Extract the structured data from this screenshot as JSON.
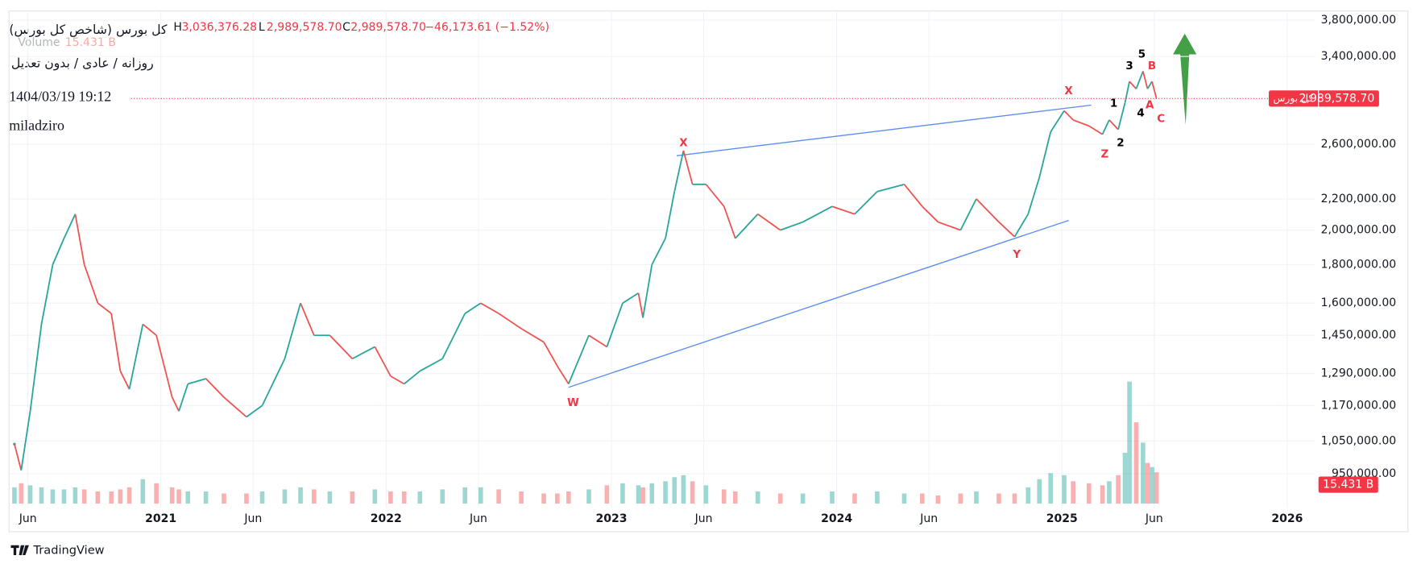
{
  "chart_data": {
    "type": "line",
    "header": {
      "title": "کل بورس (شاخص کل بورس)",
      "ohlc": [
        {
          "label": "H",
          "value": {
            "value": 3036376.28,
            "label": "3,036,376.28"
          }
        },
        {
          "label": "L",
          "value": {
            "value": 2989578.7,
            "label": "2,989,578.70"
          }
        },
        {
          "label": "C",
          "value": {
            "value": 2989578.7,
            "label": "2,989,578.70"
          }
        }
      ],
      "change_label": "−46,173.61 (−1.52%)",
      "volume_title": "Volume",
      "settings": "روزانه / عادی / بدون تعدیل",
      "timestamp": "1404/03/19 19:12",
      "author": "miladziro",
      "brand": "TradingView"
    },
    "price_label": {
      "name": "کل بورس",
      "value": {
        "value": 2989578.7,
        "label": "2,989,578.70"
      }
    },
    "volume_label": "15.431 B",
    "log_scale": true,
    "up_color": "#26a69a",
    "down_color": "#ef5350",
    "x": [
      2020.35,
      2020.38,
      2020.42,
      2020.47,
      2020.52,
      2020.57,
      2020.62,
      2020.66,
      2020.72,
      2020.78,
      2020.82,
      2020.86,
      2020.92,
      2020.98,
      2021.05,
      2021.08,
      2021.12,
      2021.2,
      2021.28,
      2021.38,
      2021.45,
      2021.55,
      2021.62,
      2021.68,
      2021.75,
      2021.85,
      2021.95,
      2022.02,
      2022.08,
      2022.15,
      2022.25,
      2022.35,
      2022.42,
      2022.5,
      2022.6,
      2022.7,
      2022.76,
      2022.81,
      2022.9,
      2022.98,
      2023.05,
      2023.12,
      2023.14,
      2023.18,
      2023.24,
      2023.28,
      2023.32,
      2023.36,
      2023.42,
      2023.5,
      2023.55,
      2023.65,
      2023.75,
      2023.85,
      2023.98,
      2024.08,
      2024.18,
      2024.3,
      2024.38,
      2024.45,
      2024.55,
      2024.62,
      2024.72,
      2024.79,
      2024.85,
      2024.9,
      2024.95,
      2025.01,
      2025.05,
      2025.12,
      2025.18,
      2025.21,
      2025.25,
      2025.28,
      2025.3,
      2025.33,
      2025.36,
      2025.38,
      2025.4,
      2025.42
    ],
    "values": [
      1040000,
      960000,
      1150000,
      1500000,
      1800000,
      1950000,
      2100000,
      1800000,
      1600000,
      1550000,
      1300000,
      1230000,
      1500000,
      1450000,
      1200000,
      1150000,
      1250000,
      1270000,
      1200000,
      1130000,
      1170000,
      1350000,
      1600000,
      1450000,
      1450000,
      1350000,
      1400000,
      1280000,
      1250000,
      1300000,
      1350000,
      1550000,
      1600000,
      1550000,
      1480000,
      1420000,
      1320000,
      1250000,
      1450000,
      1400000,
      1600000,
      1650000,
      1530000,
      1800000,
      1950000,
      2250000,
      2550000,
      2300000,
      2300000,
      2150000,
      1950000,
      2100000,
      2000000,
      2050000,
      2150000,
      2100000,
      2250000,
      2300000,
      2150000,
      2050000,
      2000000,
      2200000,
      2050000,
      1960000,
      2100000,
      2350000,
      2700000,
      2880000,
      2800000,
      2750000,
      2680000,
      2800000,
      2720000,
      2950000,
      3150000,
      3080000,
      3250000,
      3080000,
      3150000,
      2989578.7
    ],
    "volume": [
      8,
      10,
      9,
      8,
      7,
      7,
      8,
      7,
      6,
      6,
      7,
      8,
      12,
      10,
      8,
      7,
      6,
      6,
      5,
      5,
      6,
      7,
      8,
      7,
      6,
      6,
      7,
      6,
      6,
      6,
      7,
      8,
      8,
      7,
      6,
      5,
      5,
      6,
      7,
      9,
      10,
      9,
      8,
      10,
      11,
      13,
      14,
      11,
      9,
      7,
      6,
      6,
      5,
      5,
      6,
      5,
      6,
      5,
      5,
      4,
      5,
      6,
      5,
      5,
      8,
      12,
      15,
      14,
      11,
      10,
      9,
      11,
      14,
      25,
      60,
      40,
      30,
      20,
      18,
      15.431
    ],
    "xlim": [
      2020.326,
      2026.123
    ],
    "xticks": [
      {
        "value": 2020.41,
        "label": "Jun"
      },
      2021,
      {
        "value": 2021.41,
        "label": "Jun"
      },
      2022,
      {
        "value": 2022.41,
        "label": "Jun"
      },
      2023,
      {
        "value": 2023.41,
        "label": "Jun"
      },
      2024,
      {
        "value": 2024.41,
        "label": "Jun"
      },
      2025,
      {
        "value": 2025.41,
        "label": "Jun"
      },
      2026
    ],
    "ylim": [
      867000,
      3906000
    ],
    "yticks": [
      {
        "value": 950000,
        "label": "950,000.00"
      },
      {
        "value": 1050000,
        "label": "1,050,000.00"
      },
      {
        "value": 1170000,
        "label": "1,170,000.00"
      },
      {
        "value": 1290000,
        "label": "1,290,000.00"
      },
      {
        "value": 1450000,
        "label": "1,450,000.00"
      },
      {
        "value": 1600000,
        "label": "1,600,000.00"
      },
      {
        "value": 1800000,
        "label": "1,800,000.00"
      },
      {
        "value": 2000000,
        "label": "2,000,000.00"
      },
      {
        "value": 2200000,
        "label": "2,200,000.00"
      },
      {
        "value": 2600000,
        "label": "2,600,000.00"
      },
      {
        "value": 3400000,
        "label": "3,400,000.00"
      },
      {
        "value": 3800000,
        "label": "3,800,000.00"
      }
    ],
    "grid": true,
    "trendlines": [
      {
        "x": [
          2023.29,
          2025.13
        ],
        "y": [
          2510000,
          2930000
        ],
        "color": "#5b8def"
      },
      {
        "x": [
          2022.81,
          2025.03
        ],
        "y": [
          1237000,
          2060000
        ],
        "color": "#5b8def"
      }
    ],
    "annotations": [
      {
        "text": "W",
        "x": 2022.83,
        "y": 1180000,
        "color": "#f23645"
      },
      {
        "text": "X",
        "x": 2023.32,
        "y": 2610000,
        "color": "#f23645"
      },
      {
        "text": "Y",
        "x": 2024.8,
        "y": 1855000,
        "color": "#f23645"
      },
      {
        "text": "X",
        "x": 2025.03,
        "y": 3060000,
        "color": "#f23645"
      },
      {
        "text": "Z",
        "x": 2025.19,
        "y": 2520000,
        "color": "#f23645"
      },
      {
        "text": "1",
        "x": 2025.23,
        "y": 2945000,
        "color": "#000000"
      },
      {
        "text": "2",
        "x": 2025.26,
        "y": 2610000,
        "color": "#000000"
      },
      {
        "text": "3",
        "x": 2025.3,
        "y": 3300000,
        "color": "#000000"
      },
      {
        "text": "4",
        "x": 2025.35,
        "y": 2860000,
        "color": "#000000"
      },
      {
        "text": "5",
        "x": 2025.355,
        "y": 3420000,
        "color": "#000000"
      },
      {
        "text": "A",
        "x": 2025.39,
        "y": 2930000,
        "color": "#f23645"
      },
      {
        "text": "B",
        "x": 2025.4,
        "y": 3300000,
        "color": "#f23645"
      },
      {
        "text": "C",
        "x": 2025.44,
        "y": 2810000,
        "color": "#f23645"
      }
    ]
  }
}
